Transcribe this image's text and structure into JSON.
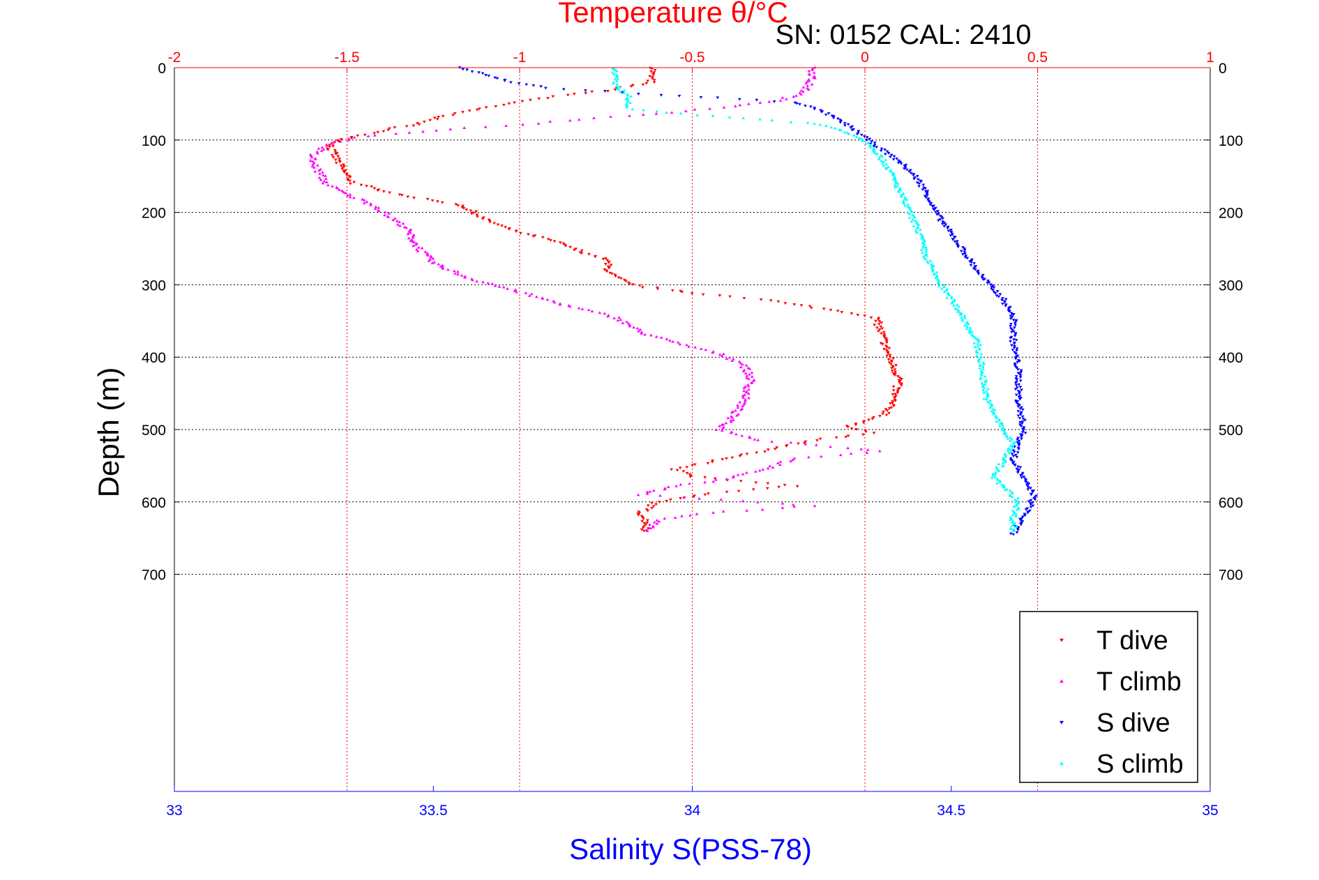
{
  "chart_data": {
    "type": "scatter",
    "title": "Temperature θ/°C",
    "subtitle": "SN: 0152  CAL: 2410",
    "ylabel": "Depth (m)",
    "xlabel_bottom": "Salinity S(PSS-78)",
    "temperature_axis": {
      "range": [
        -2,
        1
      ],
      "ticks": [
        "-2",
        "-1.5",
        "-1",
        "-0.5",
        "0",
        "0.5",
        "1"
      ]
    },
    "salinity_axis": {
      "range": [
        33,
        35
      ],
      "ticks": [
        "33",
        "33.5",
        "34",
        "34.5",
        "35"
      ]
    },
    "depth_axis": {
      "range": [
        0,
        1000
      ],
      "reversed": true,
      "ticks": [
        "0",
        "100",
        "200",
        "300",
        "400",
        "500",
        "600",
        "700"
      ]
    },
    "grid": true,
    "legend_position": "bottom-right",
    "series": [
      {
        "name": "T dive",
        "axis": "temperature",
        "color": "#ff0000",
        "marker": "triangle-down",
        "points": [
          [
            -0.61,
            0
          ],
          [
            -0.62,
            10
          ],
          [
            -0.62,
            20
          ],
          [
            -0.75,
            32
          ],
          [
            -0.9,
            40
          ],
          [
            -1.1,
            55
          ],
          [
            -1.2,
            65
          ],
          [
            -1.3,
            78
          ],
          [
            -1.4,
            88
          ],
          [
            -1.52,
            100
          ],
          [
            -1.55,
            110
          ],
          [
            -1.52,
            135
          ],
          [
            -1.5,
            150
          ],
          [
            -1.48,
            160
          ],
          [
            -1.4,
            170
          ],
          [
            -1.3,
            180
          ],
          [
            -1.17,
            190
          ],
          [
            -1.1,
            210
          ],
          [
            -1.02,
            225
          ],
          [
            -0.9,
            240
          ],
          [
            -0.82,
            255
          ],
          [
            -0.75,
            265
          ],
          [
            -0.74,
            285
          ],
          [
            -0.68,
            300
          ],
          [
            -0.5,
            312
          ],
          [
            -0.3,
            320
          ],
          [
            -0.1,
            335
          ],
          [
            0.03,
            345
          ],
          [
            0.05,
            370
          ],
          [
            0.07,
            400
          ],
          [
            0.1,
            430
          ],
          [
            0.08,
            460
          ],
          [
            0.06,
            480
          ],
          [
            -0.05,
            495
          ],
          [
            0.02,
            505
          ],
          [
            -0.15,
            515
          ],
          [
            -0.3,
            530
          ],
          [
            -0.45,
            545
          ],
          [
            -0.55,
            555
          ],
          [
            -0.5,
            565
          ],
          [
            -0.2,
            578
          ],
          [
            -0.45,
            588
          ],
          [
            -0.6,
            600
          ],
          [
            -0.65,
            615
          ],
          [
            -0.63,
            630
          ],
          [
            -0.64,
            640
          ]
        ]
      },
      {
        "name": "T climb",
        "axis": "temperature",
        "color": "#ff00ff",
        "marker": "triangle-up",
        "points": [
          [
            -0.15,
            0
          ],
          [
            -0.15,
            10
          ],
          [
            -0.16,
            20
          ],
          [
            -0.18,
            35
          ],
          [
            -0.25,
            45
          ],
          [
            -0.4,
            55
          ],
          [
            -0.65,
            65
          ],
          [
            -0.9,
            75
          ],
          [
            -1.2,
            85
          ],
          [
            -1.45,
            95
          ],
          [
            -1.55,
            105
          ],
          [
            -1.6,
            120
          ],
          [
            -1.6,
            130
          ],
          [
            -1.58,
            145
          ],
          [
            -1.56,
            160
          ],
          [
            -1.5,
            175
          ],
          [
            -1.42,
            190
          ],
          [
            -1.38,
            205
          ],
          [
            -1.33,
            220
          ],
          [
            -1.3,
            245
          ],
          [
            -1.25,
            270
          ],
          [
            -1.15,
            290
          ],
          [
            -1.0,
            310
          ],
          [
            -0.85,
            330
          ],
          [
            -0.72,
            345
          ],
          [
            -0.65,
            365
          ],
          [
            -0.55,
            380
          ],
          [
            -0.42,
            395
          ],
          [
            -0.35,
            410
          ],
          [
            -0.33,
            430
          ],
          [
            -0.35,
            460
          ],
          [
            -0.38,
            480
          ],
          [
            -0.42,
            500
          ],
          [
            -0.3,
            515
          ],
          [
            -0.05,
            525
          ],
          [
            0.05,
            530
          ],
          [
            -0.2,
            540
          ],
          [
            -0.3,
            555
          ],
          [
            -0.4,
            568
          ],
          [
            -0.55,
            578
          ],
          [
            -0.65,
            590
          ],
          [
            -0.3,
            600
          ],
          [
            -0.15,
            605
          ],
          [
            -0.45,
            615
          ],
          [
            -0.6,
            625
          ],
          [
            -0.63,
            640
          ]
        ]
      },
      {
        "name": "S dive",
        "axis": "salinity",
        "color": "#0000ff",
        "marker": "triangle-down",
        "points": [
          [
            33.55,
            0
          ],
          [
            33.6,
            10
          ],
          [
            33.65,
            20
          ],
          [
            33.72,
            28
          ],
          [
            33.9,
            36
          ],
          [
            34.05,
            42
          ],
          [
            34.2,
            48
          ],
          [
            34.25,
            60
          ],
          [
            34.3,
            80
          ],
          [
            34.33,
            95
          ],
          [
            34.36,
            110
          ],
          [
            34.4,
            130
          ],
          [
            34.43,
            150
          ],
          [
            34.45,
            170
          ],
          [
            34.47,
            200
          ],
          [
            34.5,
            230
          ],
          [
            34.53,
            260
          ],
          [
            34.56,
            290
          ],
          [
            34.6,
            320
          ],
          [
            34.62,
            345
          ],
          [
            34.62,
            380
          ],
          [
            34.63,
            420
          ],
          [
            34.63,
            460
          ],
          [
            34.64,
            500
          ],
          [
            34.62,
            540
          ],
          [
            34.64,
            570
          ],
          [
            34.66,
            590
          ],
          [
            34.65,
            610
          ],
          [
            34.63,
            630
          ],
          [
            34.62,
            645
          ]
        ]
      },
      {
        "name": "S climb",
        "axis": "salinity",
        "color": "#00ffff",
        "marker": "triangle-up",
        "points": [
          [
            33.85,
            0
          ],
          [
            33.85,
            10
          ],
          [
            33.85,
            20
          ],
          [
            33.86,
            30
          ],
          [
            33.88,
            40
          ],
          [
            33.87,
            55
          ],
          [
            33.95,
            62
          ],
          [
            34.1,
            70
          ],
          [
            34.22,
            76
          ],
          [
            34.27,
            82
          ],
          [
            34.32,
            95
          ],
          [
            34.35,
            110
          ],
          [
            34.38,
            140
          ],
          [
            34.4,
            170
          ],
          [
            34.42,
            200
          ],
          [
            34.44,
            230
          ],
          [
            34.45,
            260
          ],
          [
            34.48,
            300
          ],
          [
            34.52,
            340
          ],
          [
            34.55,
            380
          ],
          [
            34.56,
            420
          ],
          [
            34.57,
            460
          ],
          [
            34.6,
            500
          ],
          [
            34.62,
            520
          ],
          [
            34.6,
            545
          ],
          [
            34.58,
            565
          ],
          [
            34.61,
            585
          ],
          [
            34.63,
            600
          ],
          [
            34.62,
            620
          ],
          [
            34.62,
            640
          ]
        ]
      }
    ]
  }
}
